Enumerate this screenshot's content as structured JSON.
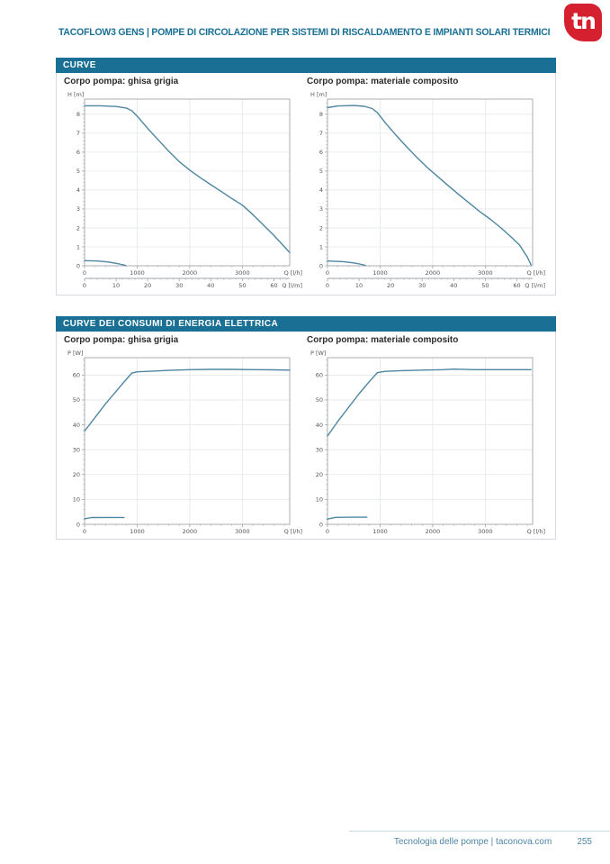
{
  "header": {
    "title": "TACOFLOW3 GENS  |  POMPE DI CIRCOLAZIONE PER SISTEMI DI RISCALDAMENTO E IMPIANTI SOLARI TERMICI",
    "logo_text": "tn"
  },
  "sections": [
    {
      "bar_label": "CURVE"
    },
    {
      "bar_label": "CURVE DEI CONSUMI DI ENERGIA ELETTRICA"
    }
  ],
  "footer": {
    "text": "Tecnologia delle pompe  |  taconova.com",
    "page_number": "255"
  },
  "colors": {
    "accent_teal": "#1A6F94",
    "curve_blue": "#4E86A0",
    "logo_red": "#D5202F",
    "grid_gray": "#E4E7E9",
    "axis_gray": "#9FA6AA",
    "tick_text": "#555555"
  },
  "chart_data": [
    {
      "type": "line",
      "title": "Corpo pompa: ghisa grigia",
      "ylabel": "H [m]",
      "xlabel": "Q [l/h]",
      "x2label": "Q [l/m]",
      "xlim": [
        0,
        3900
      ],
      "ylim": [
        0,
        8.8
      ],
      "xticks": [
        0,
        1000,
        2000,
        3000
      ],
      "yticks": [
        0,
        1,
        2,
        3,
        4,
        5,
        6,
        7,
        8
      ],
      "xminor": 200,
      "yminor": 0.2,
      "x2lim": [
        0,
        65
      ],
      "x2ticks": [
        0,
        10,
        20,
        30,
        40,
        50,
        60
      ],
      "x2minor": 2,
      "grid": true,
      "series": [
        {
          "name": "curva-max",
          "points": [
            [
              0,
              8.45
            ],
            [
              300,
              8.45
            ],
            [
              600,
              8.41
            ],
            [
              800,
              8.32
            ],
            [
              900,
              8.18
            ],
            [
              1000,
              7.9
            ],
            [
              1200,
              7.25
            ],
            [
              1400,
              6.65
            ],
            [
              1600,
              6.05
            ],
            [
              1800,
              5.5
            ],
            [
              2000,
              5.05
            ],
            [
              2200,
              4.65
            ],
            [
              2400,
              4.28
            ],
            [
              2600,
              3.92
            ],
            [
              2800,
              3.55
            ],
            [
              3000,
              3.2
            ],
            [
              3200,
              2.7
            ],
            [
              3400,
              2.15
            ],
            [
              3600,
              1.6
            ],
            [
              3800,
              1.0
            ],
            [
              3900,
              0.7
            ]
          ]
        },
        {
          "name": "curva-min",
          "points": [
            [
              0,
              0.27
            ],
            [
              250,
              0.25
            ],
            [
              450,
              0.2
            ],
            [
              600,
              0.13
            ],
            [
              700,
              0.07
            ],
            [
              780,
              0.02
            ]
          ]
        }
      ]
    },
    {
      "type": "line",
      "title": "Corpo pompa: materiale composito",
      "ylabel": "H [m]",
      "xlabel": "Q [l/h]",
      "x2label": "Q [l/m]",
      "xlim": [
        0,
        3900
      ],
      "ylim": [
        0,
        8.8
      ],
      "xticks": [
        0,
        1000,
        2000,
        3000
      ],
      "yticks": [
        0,
        1,
        2,
        3,
        4,
        5,
        6,
        7,
        8
      ],
      "xminor": 200,
      "yminor": 0.2,
      "x2lim": [
        0,
        65
      ],
      "x2ticks": [
        0,
        10,
        20,
        30,
        40,
        50,
        60
      ],
      "x2minor": 2,
      "grid": true,
      "series": [
        {
          "name": "curva-max",
          "points": [
            [
              0,
              8.35
            ],
            [
              200,
              8.44
            ],
            [
              500,
              8.46
            ],
            [
              700,
              8.42
            ],
            [
              850,
              8.3
            ],
            [
              950,
              8.08
            ],
            [
              1100,
              7.55
            ],
            [
              1300,
              6.9
            ],
            [
              1500,
              6.3
            ],
            [
              1700,
              5.72
            ],
            [
              1900,
              5.18
            ],
            [
              2100,
              4.7
            ],
            [
              2300,
              4.22
            ],
            [
              2500,
              3.75
            ],
            [
              2700,
              3.3
            ],
            [
              2900,
              2.85
            ],
            [
              3100,
              2.45
            ],
            [
              3300,
              2.0
            ],
            [
              3500,
              1.5
            ],
            [
              3650,
              1.1
            ],
            [
              3800,
              0.45
            ],
            [
              3870,
              0.05
            ]
          ]
        },
        {
          "name": "curva-min",
          "points": [
            [
              0,
              0.25
            ],
            [
              300,
              0.22
            ],
            [
              500,
              0.15
            ],
            [
              650,
              0.07
            ],
            [
              720,
              0.02
            ]
          ]
        }
      ]
    },
    {
      "type": "line",
      "title": "Corpo pompa: ghisa grigia",
      "ylabel": "P [W]",
      "xlabel": "Q [l/h]",
      "xlim": [
        0,
        3900
      ],
      "ylim": [
        0,
        67
      ],
      "xticks": [
        0,
        1000,
        2000,
        3000
      ],
      "yticks": [
        0,
        10,
        20,
        30,
        40,
        50,
        60
      ],
      "xminor": 200,
      "yminor": 2,
      "grid": true,
      "series": [
        {
          "name": "curva-max",
          "points": [
            [
              0,
              37.5
            ],
            [
              200,
              43
            ],
            [
              400,
              48.5
            ],
            [
              600,
              53.5
            ],
            [
              800,
              58.5
            ],
            [
              900,
              60.8
            ],
            [
              1000,
              61.3
            ],
            [
              1300,
              61.6
            ],
            [
              1600,
              61.9
            ],
            [
              2000,
              62.2
            ],
            [
              2400,
              62.3
            ],
            [
              2800,
              62.3
            ],
            [
              3200,
              62.2
            ],
            [
              3600,
              62.1
            ],
            [
              3900,
              62.0
            ]
          ]
        },
        {
          "name": "curva-min",
          "points": [
            [
              0,
              2.2
            ],
            [
              120,
              2.7
            ],
            [
              400,
              2.75
            ],
            [
              750,
              2.75
            ]
          ]
        }
      ]
    },
    {
      "type": "line",
      "title": "Corpo pompa: materiale composito",
      "ylabel": "P [W]",
      "xlabel": "Q [l/h]",
      "xlim": [
        0,
        3900
      ],
      "ylim": [
        0,
        67
      ],
      "xticks": [
        0,
        1000,
        2000,
        3000
      ],
      "yticks": [
        0,
        10,
        20,
        30,
        40,
        50,
        60
      ],
      "xminor": 200,
      "yminor": 2,
      "grid": true,
      "series": [
        {
          "name": "curva-max",
          "points": [
            [
              0,
              35.5
            ],
            [
              200,
              41.5
            ],
            [
              400,
              47
            ],
            [
              600,
              52.5
            ],
            [
              800,
              57.5
            ],
            [
              950,
              61.0
            ],
            [
              1100,
              61.5
            ],
            [
              1400,
              61.8
            ],
            [
              1800,
              62.0
            ],
            [
              2200,
              62.2
            ],
            [
              2400,
              62.4
            ],
            [
              2800,
              62.2
            ],
            [
              3200,
              62.2
            ],
            [
              3600,
              62.2
            ],
            [
              3870,
              62.2
            ]
          ]
        },
        {
          "name": "curva-min",
          "points": [
            [
              0,
              2.1
            ],
            [
              150,
              2.8
            ],
            [
              450,
              2.85
            ],
            [
              750,
              2.85
            ]
          ]
        }
      ]
    }
  ]
}
